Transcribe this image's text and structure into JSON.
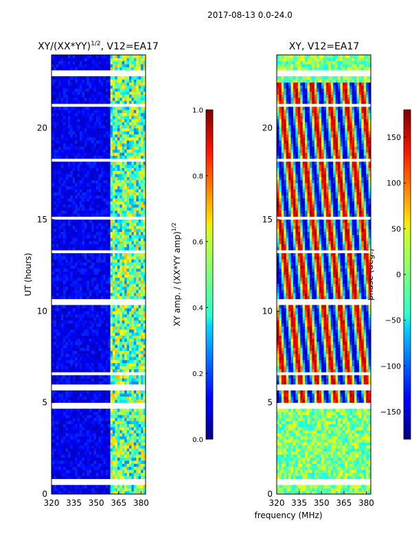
{
  "suptitle": "2017-08-13 0.0-24.0",
  "shared_xlabel": "frequency (MHz)",
  "chart_data": [
    {
      "type": "heatmap",
      "title_text": "XY/(XX*YY)",
      "title_exponent": "1/2",
      "title_suffix": ", V12=EA17",
      "xlabel": "",
      "ylabel": "UT (hours)",
      "x_ticks": [
        320,
        335,
        350,
        365,
        380
      ],
      "x_tick_labels": [
        "320",
        "335",
        "350",
        "365",
        "380"
      ],
      "y_ticks": [
        0,
        5,
        10,
        15,
        20
      ],
      "y_tick_labels": [
        "0",
        "5",
        "10",
        "15",
        "20"
      ],
      "xlim": [
        320,
        383
      ],
      "ylim": [
        0,
        24
      ],
      "colormap": "jet",
      "colorbar": {
        "label_text": "XY amp. / (XX*YY amp)",
        "label_exponent": "1/2",
        "range": [
          0.0,
          1.0
        ],
        "ticks": [
          0.0,
          0.2,
          0.4,
          0.6,
          0.8,
          1.0
        ],
        "tick_labels": [
          "0.0",
          "0.2",
          "0.4",
          "0.6",
          "0.8",
          "1.0"
        ]
      }
    },
    {
      "type": "heatmap",
      "title": "XY, V12=EA17",
      "xlabel": "",
      "ylabel": "",
      "x_ticks": [
        320,
        335,
        350,
        365,
        380
      ],
      "x_tick_labels": [
        "320",
        "335",
        "350",
        "365",
        "380"
      ],
      "y_ticks": [
        0,
        5,
        10,
        15,
        20
      ],
      "y_tick_labels": [
        "0",
        "5",
        "10",
        "15",
        "20"
      ],
      "xlim": [
        320,
        383
      ],
      "ylim": [
        0,
        24
      ],
      "colormap": "jet",
      "colorbar": {
        "label": "phase (deg.)",
        "range": [
          -180,
          180
        ],
        "ticks": [
          -150,
          -100,
          -50,
          0,
          50,
          100,
          150
        ],
        "tick_labels": [
          "−150",
          "−100",
          "−50",
          "0",
          "50",
          "100",
          "150"
        ]
      }
    }
  ]
}
